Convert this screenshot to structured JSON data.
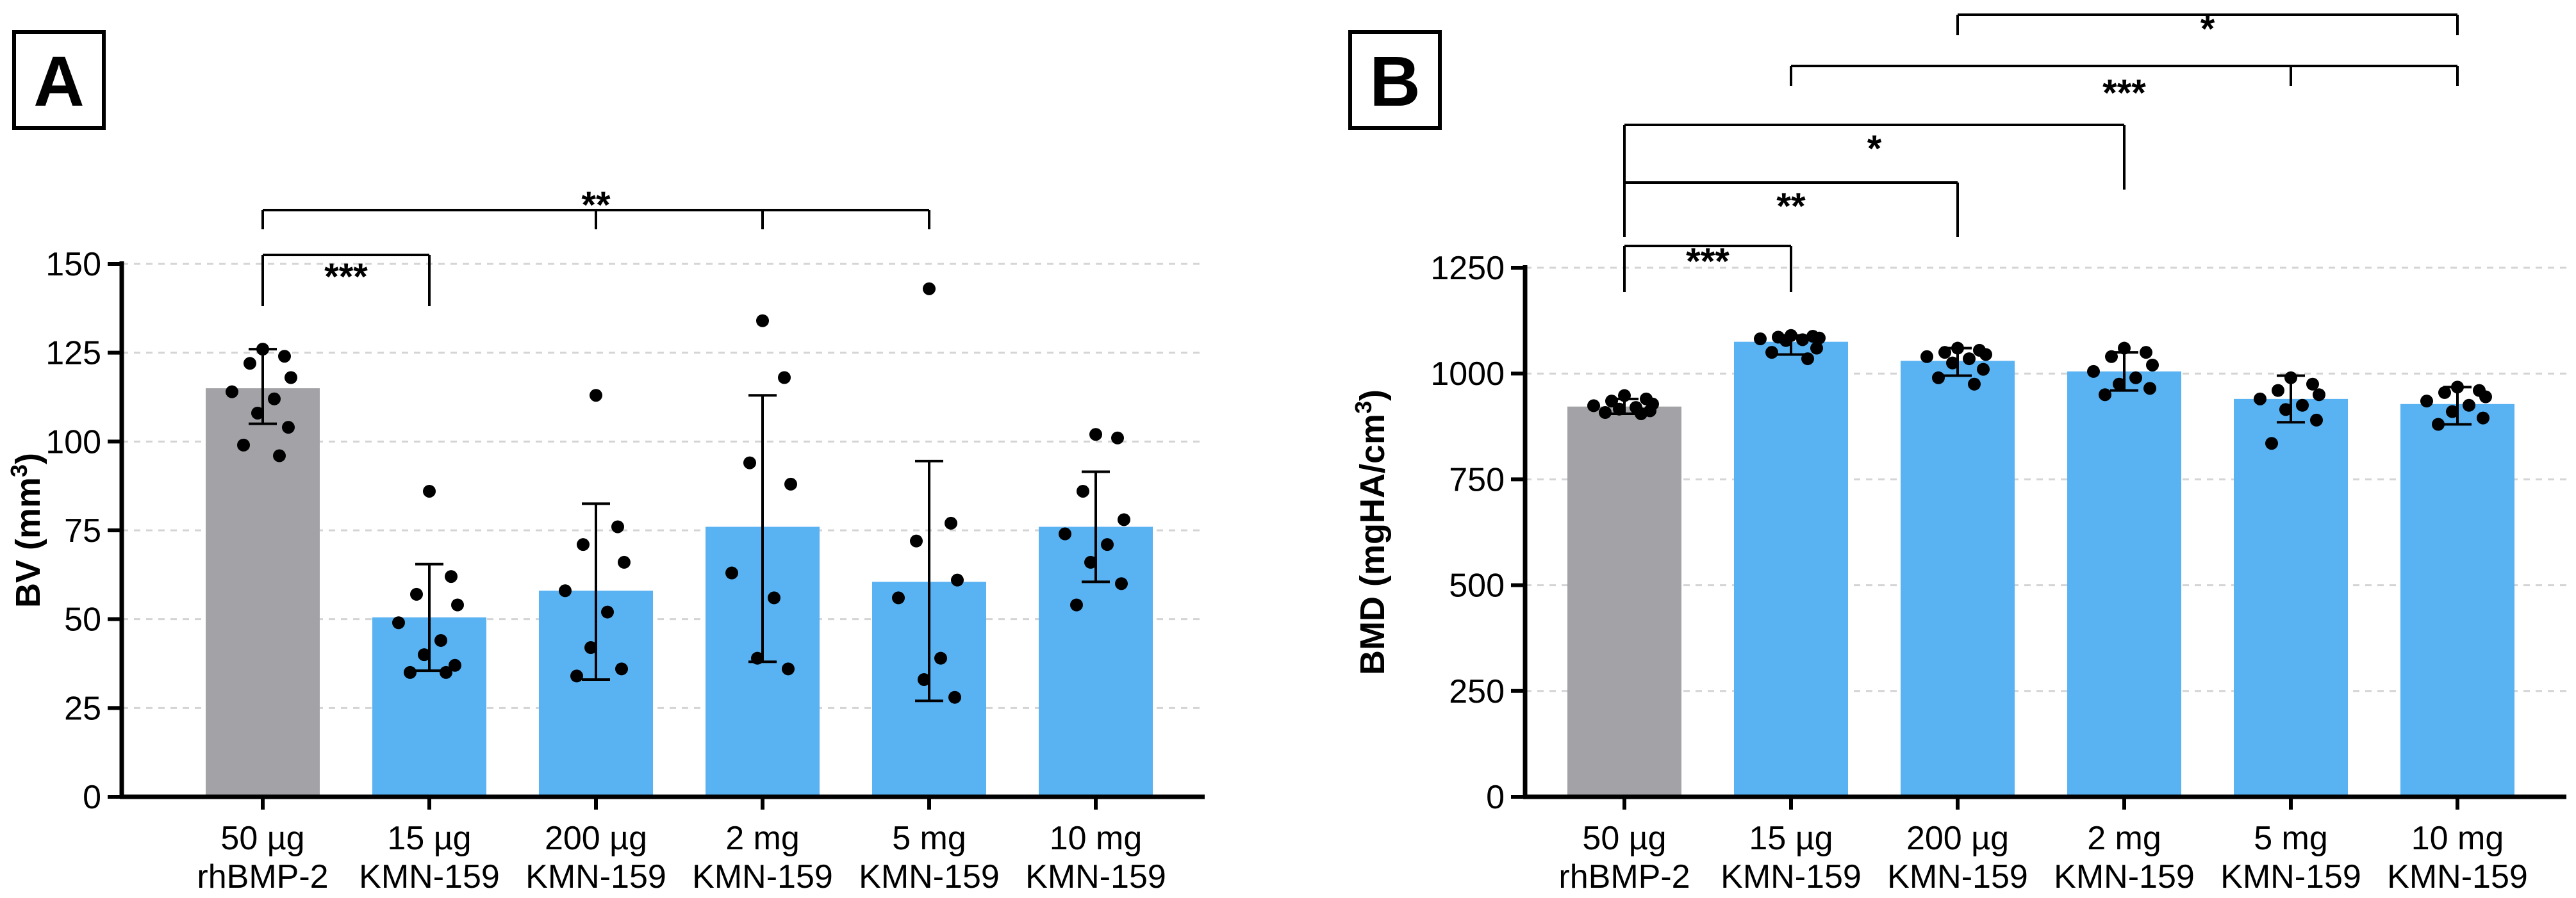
{
  "colors": {
    "gray_bar": "#a3a2a7",
    "blue_bar": "#59b2f2",
    "axis": "#000000",
    "grid": "#d4d4d4"
  },
  "chart_data": [
    {
      "panel": "A",
      "type": "bar",
      "title": "",
      "xlabel": "",
      "ylabel": "BV (mm3)",
      "ylabel_main": "BV (mm",
      "ylabel_sup": "3",
      "ylabel_close": ")",
      "ylim": [
        0,
        150
      ],
      "yticks": [
        0,
        25,
        50,
        75,
        100,
        125,
        150
      ],
      "grid": true,
      "categories": [
        [
          "50 µg",
          "rhBMP-2"
        ],
        [
          "15 µg",
          "KMN-159"
        ],
        [
          "200 µg",
          "KMN-159"
        ],
        [
          "2 mg",
          "KMN-159"
        ],
        [
          "5 mg",
          "KMN-159"
        ],
        [
          "10 mg",
          "KMN-159"
        ]
      ],
      "bar_colors": [
        "gray",
        "blue",
        "blue",
        "blue",
        "blue",
        "blue"
      ],
      "values": [
        115,
        50.5,
        58,
        76,
        60.5,
        76
      ],
      "errors": [
        [
          105,
          126
        ],
        [
          35.5,
          65.5
        ],
        [
          33,
          82.5
        ],
        [
          38,
          113
        ],
        [
          27,
          94.5
        ],
        [
          60.5,
          91.5
        ]
      ],
      "points": [
        [
          126,
          124,
          122,
          118,
          114,
          112,
          108,
          104,
          99,
          96
        ],
        [
          86,
          62,
          57,
          54,
          49,
          44,
          40,
          37,
          35,
          35
        ],
        [
          113,
          76,
          71,
          66,
          58,
          52,
          42,
          36,
          34
        ],
        [
          134,
          118,
          94,
          88,
          63,
          56,
          39,
          36
        ],
        [
          143,
          77,
          72,
          61,
          56,
          39,
          33,
          28
        ],
        [
          102,
          101,
          86,
          78,
          74,
          71,
          66,
          60,
          54
        ]
      ],
      "significance": [
        {
          "from": 0,
          "to": 1,
          "label": "***"
        },
        {
          "from": 0,
          "to": [
            2,
            3,
            4
          ],
          "label": "**"
        }
      ]
    },
    {
      "panel": "B",
      "type": "bar",
      "title": "",
      "xlabel": "",
      "ylabel": "BMD (mgHA/cm3)",
      "ylabel_main": "BMD (mgHA/cm",
      "ylabel_sup": "3",
      "ylabel_close": ")",
      "ylim": [
        0,
        1250
      ],
      "yticks": [
        0,
        250,
        500,
        750,
        1000,
        1250
      ],
      "grid": true,
      "categories": [
        [
          "50 µg",
          "rhBMP-2"
        ],
        [
          "15 µg",
          "KMN-159"
        ],
        [
          "200 µg",
          "KMN-159"
        ],
        [
          "2 mg",
          "KMN-159"
        ],
        [
          "5 mg",
          "KMN-159"
        ],
        [
          "10 mg",
          "KMN-159"
        ]
      ],
      "bar_colors": [
        "gray",
        "blue",
        "blue",
        "blue",
        "blue",
        "blue"
      ],
      "values": [
        922,
        1075,
        1030,
        1005,
        940,
        928
      ],
      "errors": [
        [
          905,
          940
        ],
        [
          1045,
          1090
        ],
        [
          995,
          1060
        ],
        [
          960,
          1050
        ],
        [
          885,
          995
        ],
        [
          880,
          968
        ]
      ],
      "points": [
        [
          948,
          940,
          935,
          928,
          924,
          920,
          916,
          912,
          908,
          905
        ],
        [
          1090,
          1088,
          1086,
          1084,
          1082,
          1080,
          1078,
          1060,
          1050,
          1035
        ],
        [
          1060,
          1055,
          1050,
          1045,
          1040,
          1035,
          1025,
          1010,
          990,
          975
        ],
        [
          1060,
          1050,
          1040,
          1020,
          1005,
          990,
          975,
          965,
          950
        ],
        [
          990,
          975,
          960,
          950,
          940,
          925,
          915,
          890,
          835
        ],
        [
          968,
          960,
          955,
          945,
          935,
          925,
          910,
          895,
          880
        ]
      ],
      "significance": [
        {
          "from": 0,
          "to": 1,
          "label": "***"
        },
        {
          "from": 0,
          "to": 2,
          "label": "**"
        },
        {
          "from": 0,
          "to": 3,
          "label": "*"
        },
        {
          "from": 1,
          "to": [
            4,
            5
          ],
          "label": "***"
        },
        {
          "from": 2,
          "to": 5,
          "label": "*"
        }
      ]
    }
  ]
}
